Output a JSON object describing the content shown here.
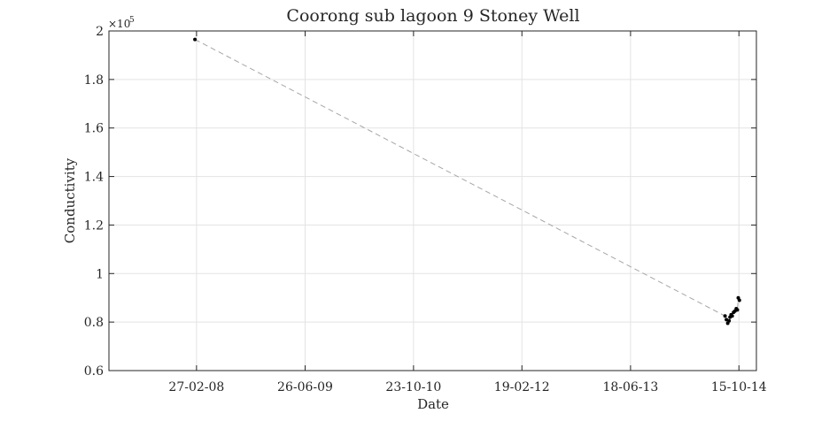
{
  "chart_data": {
    "type": "line",
    "title": "Coorong sub lagoon 9 Stoney Well",
    "xlabel": "Date",
    "ylabel": "Conductivity",
    "y_exponent_label": "×10",
    "y_exponent_power": "5",
    "x_range": [
      "2007-02-01",
      "2015-01-01"
    ],
    "xlim": [
      "2007-02-01",
      "2015-01-01"
    ],
    "ylim": [
      60000,
      200000
    ],
    "x_ticks": [
      "2008-02-27",
      "2009-06-26",
      "2010-10-23",
      "2012-02-19",
      "2013-06-18",
      "2014-10-15"
    ],
    "x_tick_labels": [
      "27-02-08",
      "26-06-09",
      "23-10-10",
      "19-02-12",
      "18-06-13",
      "15-10-14"
    ],
    "y_ticks": [
      60000,
      80000,
      100000,
      120000,
      140000,
      160000,
      180000,
      200000
    ],
    "y_tick_labels": [
      "0.6",
      "0.8",
      "1",
      "1.2",
      "1.4",
      "1.6",
      "1.8",
      "2"
    ],
    "grid": true,
    "legend": "none",
    "series": [
      {
        "points": [
          {
            "x": "2008-02-20",
            "y": 196500
          },
          {
            "x": "2014-08-14",
            "y": 82500
          },
          {
            "x": "2014-08-20",
            "y": 81000
          },
          {
            "x": "2014-08-26",
            "y": 79500
          },
          {
            "x": "2014-09-01",
            "y": 80500
          },
          {
            "x": "2014-09-05",
            "y": 82000
          },
          {
            "x": "2014-09-10",
            "y": 83000
          },
          {
            "x": "2014-09-15",
            "y": 82500
          },
          {
            "x": "2014-09-21",
            "y": 84000
          },
          {
            "x": "2014-09-27",
            "y": 84500
          },
          {
            "x": "2014-10-03",
            "y": 85500
          },
          {
            "x": "2014-10-08",
            "y": 85000
          },
          {
            "x": "2014-10-12",
            "y": 90000
          },
          {
            "x": "2014-10-17",
            "y": 89000
          }
        ],
        "line_color": "#a6a6a6",
        "marker_color": "#000000",
        "line_style": "dashed"
      }
    ]
  }
}
